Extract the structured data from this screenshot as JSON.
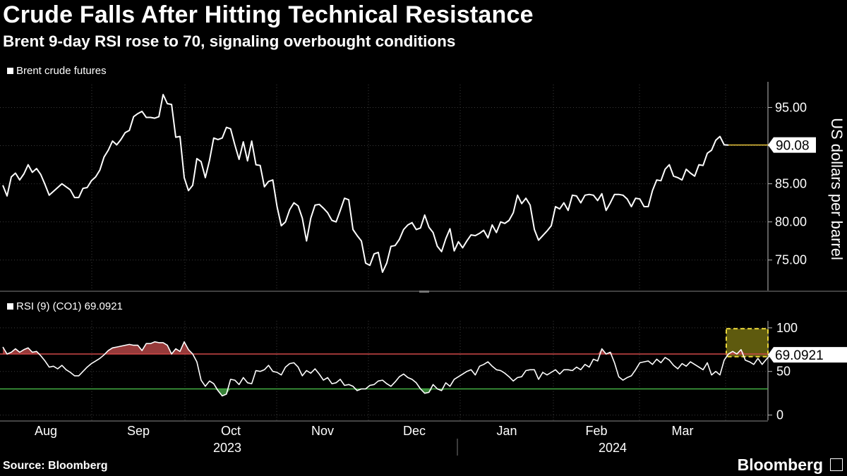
{
  "header": {
    "title": "Crude Falls After Hitting Technical Resistance",
    "subtitle": "Brent 9-day RSI rose to 70, signaling overbought conditions"
  },
  "footer": {
    "source": "Source: Bloomberg",
    "brand": "Bloomberg"
  },
  "chart_data": [
    {
      "type": "line",
      "legend": "Brent crude futures",
      "ylabel": "US dollars per barrel",
      "ylim": [
        71,
        98
      ],
      "yticks": [
        "95.00",
        "90.00",
        "85.00",
        "80.00",
        "75.00"
      ],
      "last_value_label": "90.08",
      "x_axis_labels": [
        "Aug",
        "Sep",
        "Oct",
        "Nov",
        "Dec",
        "Jan",
        "Feb",
        "Mar"
      ],
      "year_labels": [
        "2023",
        "2024"
      ],
      "grid": true,
      "values": [
        84.8,
        83.4,
        85.9,
        86.4,
        85.5,
        86.3,
        87.5,
        86.5,
        87.0,
        86.2,
        84.9,
        83.5,
        84.0,
        84.5,
        85.0,
        84.6,
        84.2,
        83.2,
        83.2,
        84.4,
        84.5,
        85.4,
        85.9,
        86.8,
        88.5,
        89.4,
        90.6,
        90.1,
        90.8,
        91.7,
        92.0,
        93.8,
        94.2,
        94.5,
        93.7,
        93.7,
        93.6,
        93.8,
        96.7,
        95.5,
        95.4,
        91.1,
        91.2,
        85.8,
        84.1,
        84.8,
        88.3,
        87.9,
        85.8,
        88.1,
        91.0,
        90.8,
        91.0,
        92.4,
        92.2,
        90.1,
        88.2,
        90.5,
        88.0,
        90.6,
        87.5,
        87.4,
        84.6,
        85.3,
        85.5,
        82.0,
        79.5,
        80.0,
        81.6,
        82.5,
        82.1,
        80.5,
        77.5,
        80.5,
        82.2,
        82.3,
        81.8,
        81.2,
        80.2,
        80.0,
        81.5,
        83.1,
        82.9,
        79.0,
        78.2,
        77.5,
        74.6,
        74.3,
        75.8,
        76.0,
        73.4,
        74.6,
        76.8,
        76.9,
        77.7,
        79.0,
        79.6,
        79.9,
        79.0,
        79.2,
        80.9,
        79.3,
        78.6,
        76.8,
        76.1,
        77.8,
        79.1,
        76.2,
        77.4,
        76.6,
        77.5,
        78.3,
        78.2,
        78.5,
        78.9,
        77.9,
        79.6,
        78.6,
        80.0,
        79.8,
        80.2,
        81.2,
        83.5,
        82.4,
        83.1,
        82.2,
        79.0,
        77.6,
        78.2,
        78.8,
        79.5,
        82.0,
        81.7,
        82.5,
        81.5,
        83.5,
        83.4,
        82.5,
        83.5,
        83.6,
        83.5,
        82.8,
        83.7,
        81.5,
        82.5,
        83.6,
        83.6,
        83.5,
        83.0,
        82.0,
        83.1,
        83.0,
        82.0,
        82.0,
        84.1,
        85.5,
        85.4,
        86.9,
        87.5,
        86.0,
        85.8,
        85.5,
        86.9,
        86.4,
        86.0,
        87.5,
        87.4,
        89.0,
        89.4,
        90.7,
        91.2,
        90.1,
        90.08
      ]
    },
    {
      "type": "line",
      "legend": "RSI (9) (CO1) 69.0921",
      "ylim": [
        -6,
        108
      ],
      "yticks": [
        "100",
        "50",
        "0"
      ],
      "reference_lines": [
        70,
        30
      ],
      "last_value_label": "69.0921",
      "highlight_box": [
        67,
        99
      ],
      "values": [
        78,
        70,
        72,
        76,
        72,
        75,
        77,
        72,
        73,
        68,
        62,
        55,
        56,
        53,
        57,
        52,
        49,
        45,
        45,
        50,
        55,
        59,
        62,
        65,
        69,
        74,
        77,
        78,
        79,
        80,
        81,
        80,
        80,
        74,
        82,
        82,
        84,
        83,
        83,
        80,
        70,
        76,
        73,
        84,
        75,
        70,
        61,
        40,
        33,
        39,
        36,
        28,
        22,
        24,
        41,
        40,
        35,
        43,
        37,
        36,
        51,
        50,
        52,
        57,
        50,
        49,
        46,
        55,
        59,
        60,
        55,
        45,
        51,
        48,
        53,
        47,
        40,
        43,
        36,
        37,
        41,
        34,
        35,
        33,
        28,
        30,
        30,
        34,
        35,
        39,
        40,
        36,
        33,
        38,
        44,
        47,
        43,
        41,
        37,
        30,
        25,
        26,
        35,
        30,
        28,
        37,
        33,
        41,
        44,
        47,
        50,
        52,
        46,
        56,
        58,
        61,
        56,
        52,
        51,
        48,
        44,
        39,
        43,
        44,
        51,
        52,
        52,
        41,
        49,
        46,
        49,
        52,
        47,
        52,
        52,
        51,
        55,
        52,
        58,
        55,
        64,
        62,
        76,
        70,
        72,
        60,
        44,
        40,
        43,
        45,
        52,
        60,
        61,
        62,
        58,
        64,
        60,
        66,
        63,
        57,
        53,
        59,
        56,
        61,
        58,
        55,
        52,
        60,
        46,
        50,
        46,
        63,
        70,
        73,
        70,
        75,
        63,
        61,
        58,
        65,
        58,
        64,
        69.09
      ]
    }
  ]
}
